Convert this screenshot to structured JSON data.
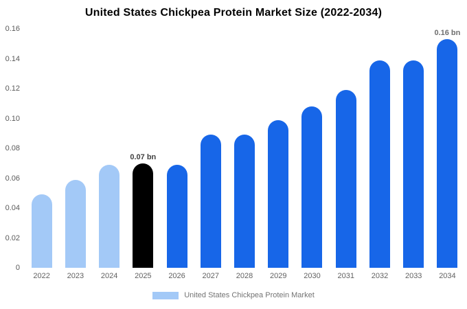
{
  "chart_data": {
    "type": "bar",
    "title": "United States Chickpea Protein Market Size (2022-2034)",
    "categories": [
      "2022",
      "2023",
      "2024",
      "2025",
      "2026",
      "2027",
      "2028",
      "2029",
      "2030",
      "2031",
      "2032",
      "2033",
      "2034"
    ],
    "values": [
      0.049,
      0.059,
      0.069,
      0.07,
      0.069,
      0.089,
      0.089,
      0.099,
      0.108,
      0.119,
      0.139,
      0.139,
      0.158
    ],
    "bar_colors": [
      "#a3c9f7",
      "#a3c9f7",
      "#a3c9f7",
      "#000000",
      "#1766e8",
      "#1766e8",
      "#1766e8",
      "#1766e8",
      "#1766e8",
      "#1766e8",
      "#1766e8",
      "#1766e8",
      "#1766e8"
    ],
    "ylim": [
      0,
      0.16
    ],
    "yticks": [
      0,
      0.02,
      0.04,
      0.06,
      0.08,
      0.1,
      0.12,
      0.14,
      0.16
    ],
    "ytick_labels": [
      "0",
      "0.02",
      "0.04",
      "0.06",
      "0.08",
      "0.10",
      "0.12",
      "0.14",
      "0.16"
    ],
    "xlabel": "",
    "ylabel": "",
    "grid": false,
    "annotations": [
      {
        "index": 3,
        "text": "0.07 bn",
        "color": "#404040"
      },
      {
        "index": 12,
        "text": "0.16 bn",
        "color": "#6e6e6e"
      }
    ],
    "legend": [
      {
        "label": "United States Chickpea Protein Market",
        "color": "#a3c9f7"
      }
    ],
    "legend_position": "bottom-center"
  }
}
